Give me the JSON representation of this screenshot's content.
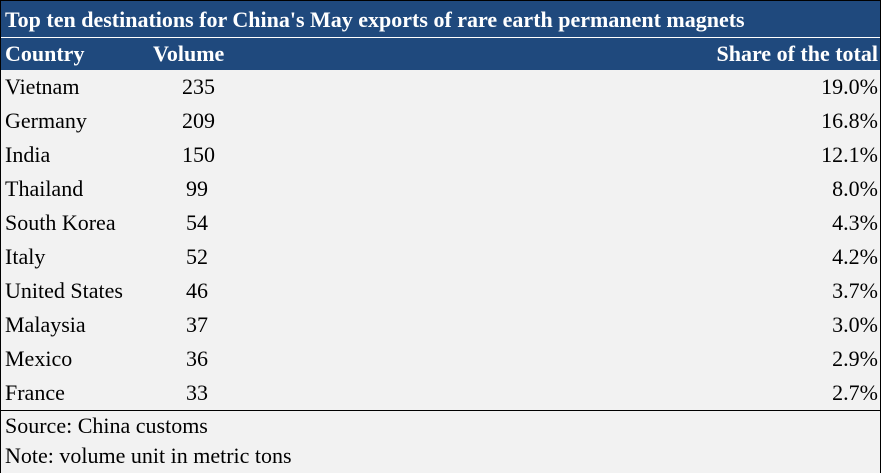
{
  "table": {
    "title": "Top ten destinations for China's May exports of rare earth permanent magnets",
    "headers": {
      "country": "Country",
      "volume": "Volume",
      "share": "Share of the total"
    },
    "rows": [
      {
        "country": "Vietnam",
        "volume": "235",
        "share": "19.0%"
      },
      {
        "country": "Germany",
        "volume": "209",
        "share": "16.8%"
      },
      {
        "country": "India",
        "volume": "150",
        "share": "12.1%"
      },
      {
        "country": "Thailand",
        "volume": "99",
        "share": "8.0%"
      },
      {
        "country": "South Korea",
        "volume": "54",
        "share": "4.3%"
      },
      {
        "country": "Italy",
        "volume": "52",
        "share": "4.2%"
      },
      {
        "country": "United States",
        "volume": "46",
        "share": "3.7%"
      },
      {
        "country": "Malaysia",
        "volume": "37",
        "share": "3.0%"
      },
      {
        "country": "Mexico",
        "volume": "36",
        "share": "2.9%"
      },
      {
        "country": "France",
        "volume": "33",
        "share": "2.7%"
      }
    ],
    "source": "Source: China customs",
    "note": "Note: volume unit in metric tons"
  },
  "colors": {
    "header_bg": "#1f497d",
    "header_text": "#ffffff",
    "body_bg": "#f2f2f2"
  }
}
